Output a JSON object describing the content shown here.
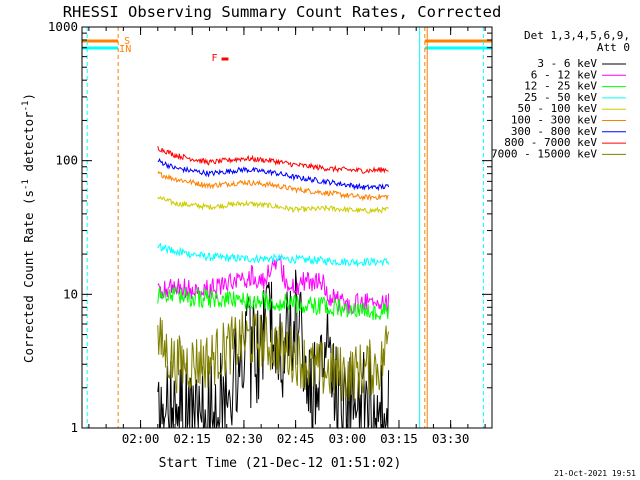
{
  "chart_data": {
    "type": "line",
    "title": "RHESSI Observing Summary Count Rates, Corrected",
    "xlabel": "Start Time (21-Dec-12 01:51:02)",
    "ylabel": "Corrected Count Rate (s",
    "ylabel_sup1": "-1",
    "ylabel_mid": " detector",
    "ylabel_sup2": "-1",
    "ylabel_end": ")",
    "x_range_min": [
      -17.0,
      102.0
    ],
    "x_tick_minutes": [
      0,
      15,
      30,
      45,
      60,
      75,
      90
    ],
    "x_tick_labels": [
      "02:00",
      "02:15",
      "02:30",
      "02:45",
      "03:00",
      "03:15",
      "03:30"
    ],
    "y_scale": "log",
    "ylim": [
      1,
      1000
    ],
    "y_ticks": [
      1,
      10,
      100,
      1000
    ],
    "y_tick_labels": [
      "1",
      "10",
      "100",
      "1000"
    ],
    "legend_title_1": "Det 1,3,4,5,6,9,",
    "legend_title_2": "Att 0",
    "series": [
      {
        "name": "3 - 6 keV",
        "color": "#000000",
        "points": [
          [
            5,
            1.2
          ],
          [
            10,
            1.3
          ],
          [
            15,
            1.2
          ],
          [
            20,
            1.3
          ],
          [
            25,
            1.8
          ],
          [
            28,
            3.0
          ],
          [
            30,
            4.5
          ],
          [
            32,
            3.5
          ],
          [
            35,
            4.0
          ],
          [
            38,
            5.5
          ],
          [
            40,
            3.0
          ],
          [
            42,
            5.0
          ],
          [
            45,
            7.0
          ],
          [
            48,
            3.5
          ],
          [
            50,
            1.5
          ],
          [
            53,
            4.0
          ],
          [
            55,
            5.0
          ],
          [
            57,
            2.0
          ],
          [
            60,
            1.4
          ],
          [
            65,
            1.5
          ],
          [
            70,
            1.3
          ],
          [
            72,
            1.2
          ]
        ],
        "noise": 0.4
      },
      {
        "name": "6 - 12 keV",
        "color": "#ff00ff",
        "points": [
          [
            5,
            11
          ],
          [
            15,
            11
          ],
          [
            22,
            11
          ],
          [
            25,
            12
          ],
          [
            28,
            13
          ],
          [
            30,
            12
          ],
          [
            32,
            14
          ],
          [
            35,
            12.5
          ],
          [
            38,
            15
          ],
          [
            40,
            17
          ],
          [
            42,
            13
          ],
          [
            45,
            11
          ],
          [
            48,
            13
          ],
          [
            50,
            12
          ],
          [
            52,
            14
          ],
          [
            54,
            10
          ],
          [
            57,
            9
          ],
          [
            60,
            8.5
          ],
          [
            65,
            8.5
          ],
          [
            72,
            8.5
          ]
        ],
        "noise": 0.08
      },
      {
        "name": "12 - 25 keV",
        "color": "#00ff00",
        "points": [
          [
            5,
            10
          ],
          [
            15,
            9.5
          ],
          [
            25,
            9
          ],
          [
            35,
            9
          ],
          [
            45,
            8.5
          ],
          [
            55,
            8
          ],
          [
            65,
            7.5
          ],
          [
            72,
            7.5
          ]
        ],
        "noise": 0.07
      },
      {
        "name": "25 - 50 keV",
        "color": "#00ffff",
        "points": [
          [
            5,
            23
          ],
          [
            10,
            21
          ],
          [
            20,
            19
          ],
          [
            30,
            18.5
          ],
          [
            40,
            18.5
          ],
          [
            50,
            18
          ],
          [
            60,
            17.5
          ],
          [
            72,
            17.5
          ]
        ],
        "noise": 0.03
      },
      {
        "name": "50 - 100 keV",
        "color": "#cccc00",
        "points": [
          [
            5,
            53
          ],
          [
            10,
            48
          ],
          [
            20,
            45
          ],
          [
            30,
            48
          ],
          [
            38,
            46
          ],
          [
            45,
            43
          ],
          [
            55,
            44
          ],
          [
            65,
            42
          ],
          [
            72,
            43
          ]
        ],
        "noise": 0.02
      },
      {
        "name": "100 - 300 keV",
        "color": "#ff8000",
        "points": [
          [
            5,
            80
          ],
          [
            10,
            73
          ],
          [
            20,
            65
          ],
          [
            30,
            69
          ],
          [
            38,
            66
          ],
          [
            45,
            61
          ],
          [
            55,
            57
          ],
          [
            65,
            53
          ],
          [
            72,
            54
          ]
        ],
        "noise": 0.02
      },
      {
        "name": "300 - 800 keV",
        "color": "#0000ff",
        "points": [
          [
            5,
            100
          ],
          [
            10,
            88
          ],
          [
            20,
            80
          ],
          [
            30,
            86
          ],
          [
            38,
            82
          ],
          [
            45,
            75
          ],
          [
            55,
            69
          ],
          [
            65,
            63
          ],
          [
            72,
            64
          ]
        ],
        "noise": 0.02
      },
      {
        "name": "800 - 7000 keV",
        "color": "#ff0000",
        "points": [
          [
            5,
            125
          ],
          [
            10,
            110
          ],
          [
            20,
            97
          ],
          [
            30,
            104
          ],
          [
            38,
            100
          ],
          [
            45,
            93
          ],
          [
            55,
            87
          ],
          [
            65,
            84
          ],
          [
            72,
            86
          ]
        ],
        "noise": 0.02
      },
      {
        "name": "7000 - 15000 keV",
        "color": "#808000",
        "points": [
          [
            5,
            4.5
          ],
          [
            10,
            3.0
          ],
          [
            20,
            3.2
          ],
          [
            25,
            4.0
          ],
          [
            30,
            4.6
          ],
          [
            35,
            4.5
          ],
          [
            40,
            4.0
          ],
          [
            45,
            3.5
          ],
          [
            50,
            2.8
          ],
          [
            60,
            2.5
          ],
          [
            70,
            3.0
          ],
          [
            72,
            5.0
          ]
        ],
        "noise": 0.22
      }
    ],
    "flag_labels": [
      "S",
      "IN",
      "F"
    ],
    "flag_colors": {
      "S": "#ff8000",
      "IN": "#00ffff",
      "F": "#ff0000"
    },
    "timestamp": "21-Oct-2021 19:51"
  }
}
